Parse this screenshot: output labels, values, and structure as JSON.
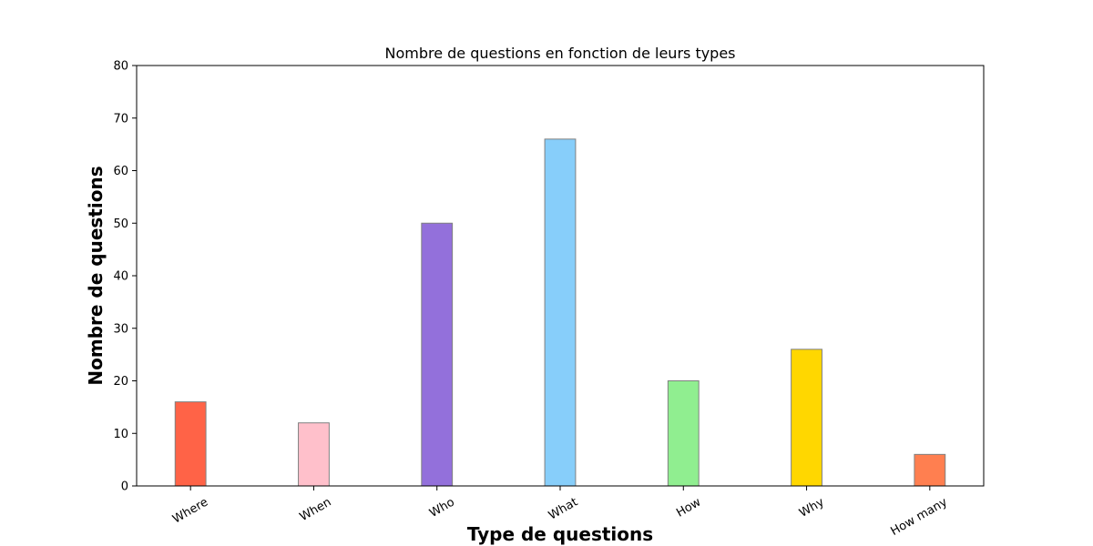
{
  "chart_data": {
    "type": "bar",
    "title": "Nombre de questions en fonction de leurs types",
    "xlabel": "Type de questions",
    "ylabel": "Nombre de questions",
    "categories": [
      "Where",
      "When",
      "Who",
      "What",
      "How",
      "Why",
      "How many"
    ],
    "values": [
      16,
      12,
      50,
      66,
      20,
      26,
      6
    ],
    "colors": [
      "#ff6347",
      "#ffc0cb",
      "#9370db",
      "#87cefa",
      "#90ee90",
      "#ffd700",
      "#ff7f50"
    ],
    "edgecolor": "#808080",
    "ylim": [
      0,
      80
    ],
    "yticks": [
      0,
      10,
      20,
      30,
      40,
      50,
      60,
      70,
      80
    ],
    "grid": false
  }
}
